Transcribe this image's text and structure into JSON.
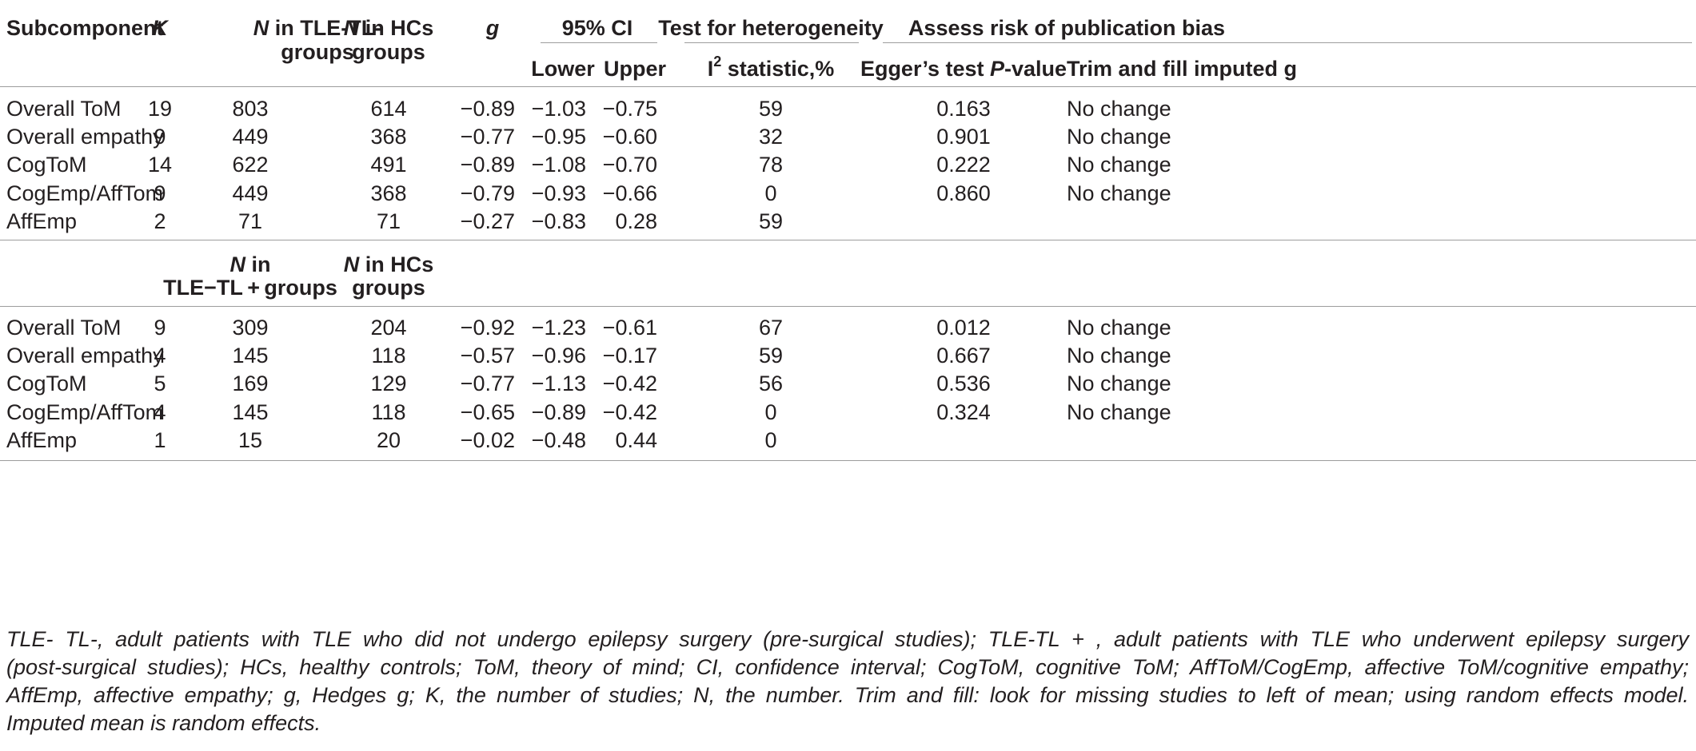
{
  "headers": {
    "subcomponent": "Subcomponent",
    "k": "K",
    "n_tle_minus_line1_italic": "N",
    "n_tle_minus_line1_rest": " in TLE-TL-",
    "n_tle_minus_line2": "groups",
    "n_hcs_line1_italic": "N",
    "n_hcs_line1_rest": " in HCs",
    "n_hcs_line2": "groups",
    "g": "g",
    "ci": "95% CI",
    "lower": "Lower",
    "upper": "Upper",
    "heterogeneity": "Test for heterogeneity",
    "i2_prefix": "I",
    "i2_sup": "2",
    "i2_suffix": " statistic,%",
    "pubbias": "Assess risk of publication bias",
    "egger_prefix": "Egger’s test ",
    "egger_italic": "P",
    "egger_suffix": "-value",
    "trimfill": "Trim and fill imputed g"
  },
  "section2_headers": {
    "n_tle_plus_line1_italic": "N",
    "n_tle_plus_line1_rest": " in",
    "n_tle_plus_line2": "TLE−TL + groups",
    "n_hcs_line1_italic": "N",
    "n_hcs_line1_rest": " in HCs",
    "n_hcs_line2": "groups"
  },
  "section1_rows": [
    {
      "name": "Overall ToM",
      "k": "19",
      "n_tle": "803",
      "n_hc": "614",
      "g": "−0.89",
      "lower": "−1.03",
      "upper": "−0.75",
      "i2": "59",
      "egger": "0.163",
      "trim": "No change"
    },
    {
      "name": "Overall empathy",
      "k": "9",
      "n_tle": "449",
      "n_hc": "368",
      "g": "−0.77",
      "lower": "−0.95",
      "upper": "−0.60",
      "i2": "32",
      "egger": "0.901",
      "trim": "No change"
    },
    {
      "name": "CogToM",
      "k": "14",
      "n_tle": "622",
      "n_hc": "491",
      "g": "−0.89",
      "lower": "−1.08",
      "upper": "−0.70",
      "i2": "78",
      "egger": "0.222",
      "trim": "No change"
    },
    {
      "name": "CogEmp/AffTom",
      "k": "9",
      "n_tle": "449",
      "n_hc": "368",
      "g": "−0.79",
      "lower": "−0.93",
      "upper": "−0.66",
      "i2": "0",
      "egger": "0.860",
      "trim": "No change"
    },
    {
      "name": "AffEmp",
      "k": "2",
      "n_tle": "71",
      "n_hc": "71",
      "g": "−0.27",
      "lower": "−0.83",
      "upper": "0.28",
      "i2": "59",
      "egger": "",
      "trim": ""
    }
  ],
  "section2_rows": [
    {
      "name": "Overall ToM",
      "k": "9",
      "n_tle": "309",
      "n_hc": "204",
      "g": "−0.92",
      "lower": "−1.23",
      "upper": "−0.61",
      "i2": "67",
      "egger": "0.012",
      "trim": "No change"
    },
    {
      "name": "Overall empathy",
      "k": "4",
      "n_tle": "145",
      "n_hc": "118",
      "g": "−0.57",
      "lower": "−0.96",
      "upper": "−0.17",
      "i2": "59",
      "egger": "0.667",
      "trim": "No change"
    },
    {
      "name": "CogToM",
      "k": "5",
      "n_tle": "169",
      "n_hc": "129",
      "g": "−0.77",
      "lower": "−1.13",
      "upper": "−0.42",
      "i2": "56",
      "egger": "0.536",
      "trim": "No change"
    },
    {
      "name": "CogEmp/AffTom",
      "k": "4",
      "n_tle": "145",
      "n_hc": "118",
      "g": "−0.65",
      "lower": "−0.89",
      "upper": "−0.42",
      "i2": "0",
      "egger": "0.324",
      "trim": "No change"
    },
    {
      "name": "AffEmp",
      "k": "1",
      "n_tle": "15",
      "n_hc": "20",
      "g": "−0.02",
      "lower": "−0.48",
      "upper": "0.44",
      "i2": "0",
      "egger": "",
      "trim": ""
    }
  ],
  "footnote": {
    "line1": "TLE- TL-, adult patients with TLE who did not undergo epilepsy surgery (pre-surgical studies); TLE-TL + , adult patients with TLE who underwent epilepsy surgery",
    "line2": "(post-surgical studies); HCs, healthy controls; ToM, theory of mind; CI, confidence interval; CogToM, cognitive ToM; AffToM/CogEmp, affective ToM/cognitive empathy;",
    "line3": "AffEmp, affective empathy; g, Hedges g; K, the number of studies; N, the number. Trim and fill: look for missing studies to left of mean; using random effects model.",
    "line4": "Imputed mean is random effects."
  },
  "colors": {
    "rule": "#9d9d9d",
    "text": "#231f20"
  }
}
